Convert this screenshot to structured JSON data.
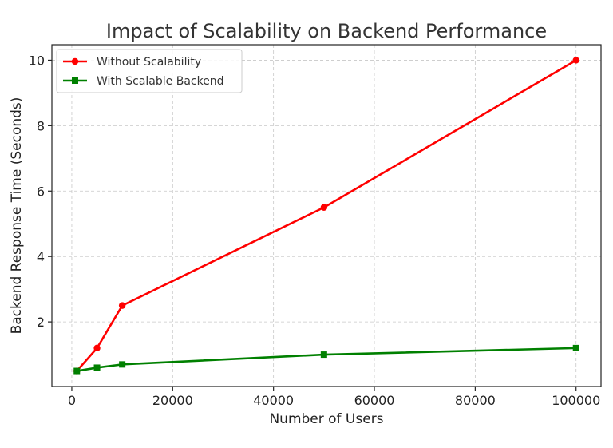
{
  "chart_data": {
    "type": "line",
    "title": "Impact of Scalability on Backend Performance",
    "xlabel": "Number of Users",
    "ylabel": "Backend Response Time (Seconds)",
    "x": [
      1000,
      5000,
      10000,
      50000,
      100000
    ],
    "xlim": [
      -3950,
      104950
    ],
    "ylim": [
      0.025,
      10.475
    ],
    "xticks": [
      0,
      20000,
      40000,
      60000,
      80000,
      100000
    ],
    "yticks": [
      2,
      4,
      6,
      8,
      10
    ],
    "grid": true,
    "legend_position": "top-left",
    "series": [
      {
        "name": "Without Scalability",
        "values": [
          0.5,
          1.2,
          2.5,
          5.5,
          10.0
        ],
        "color": "#ff0000",
        "marker": "circle"
      },
      {
        "name": "With Scalable Backend",
        "values": [
          0.5,
          0.6,
          0.7,
          1.0,
          1.2
        ],
        "color": "#008000",
        "marker": "square"
      }
    ]
  }
}
